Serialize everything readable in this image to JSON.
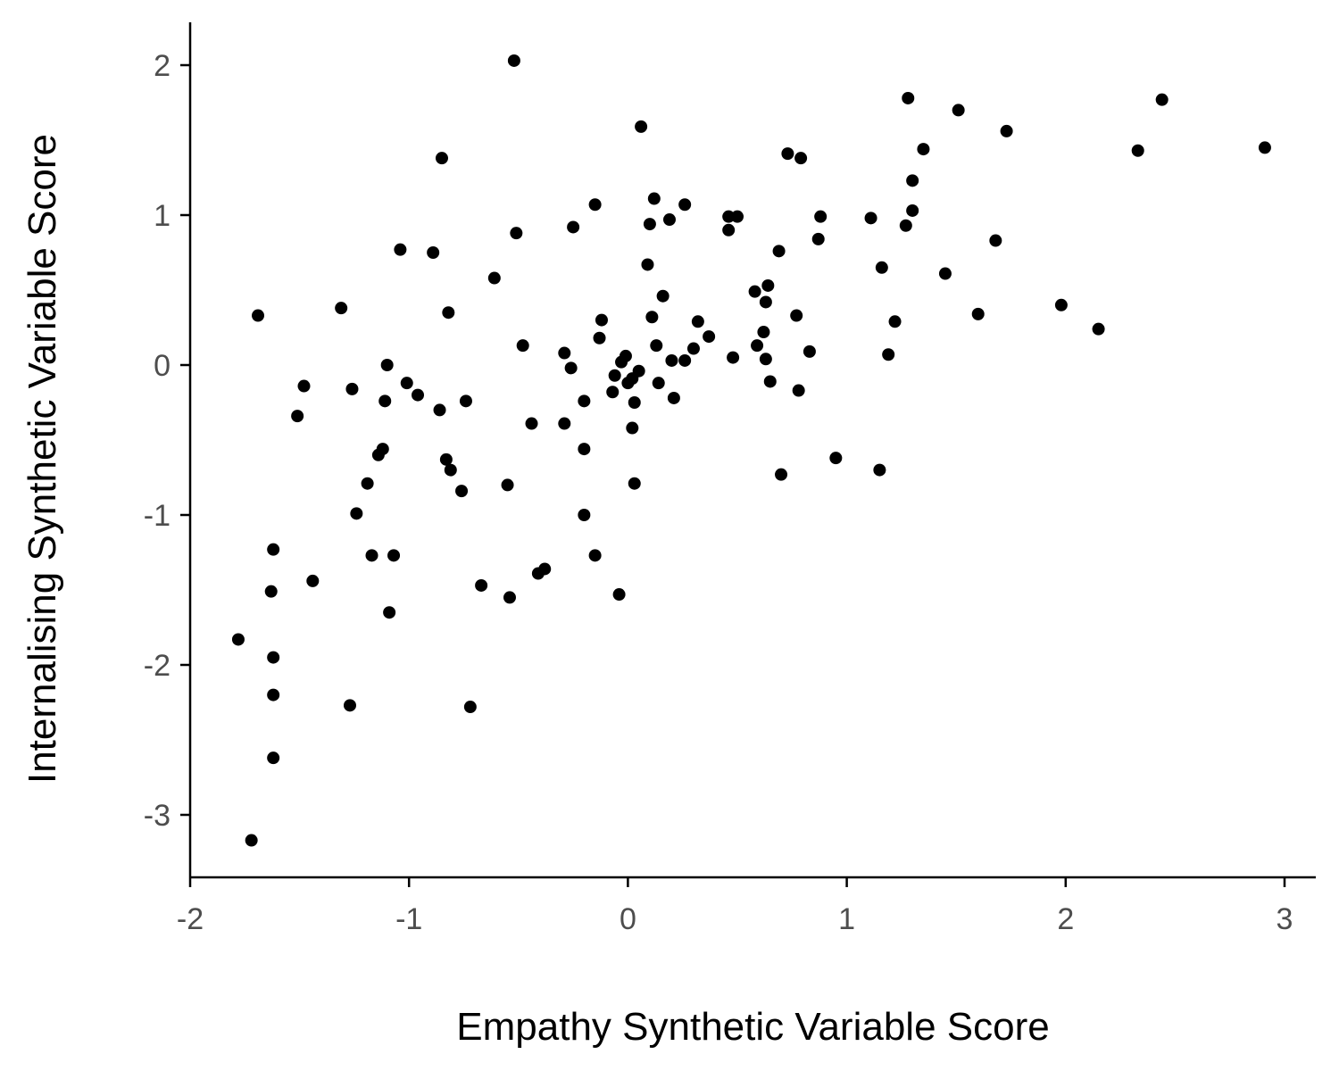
{
  "chart_data": {
    "type": "scatter",
    "title": "",
    "xlabel": "Empathy Synthetic Variable Score",
    "ylabel": "Internalising Synthetic Variable Score",
    "xlim": [
      -2.0,
      3.15
    ],
    "ylim": [
      -3.42,
      2.3
    ],
    "xticks": [
      -2,
      -1,
      0,
      1,
      2,
      3
    ],
    "yticks": [
      -3,
      -2,
      -1,
      0,
      1,
      2
    ],
    "xtick_labels": [
      "-2",
      "-1",
      "0",
      "1",
      "2",
      "3"
    ],
    "ytick_labels": [
      "-3",
      "-2",
      "-1",
      "0",
      "1",
      "2"
    ],
    "grid": false,
    "point_color": "#000000",
    "series": [
      {
        "points": [
          [
            -0.52,
            2.03
          ],
          [
            0.06,
            1.59
          ],
          [
            1.28,
            1.78
          ],
          [
            1.51,
            1.7
          ],
          [
            2.44,
            1.77
          ],
          [
            1.73,
            1.56
          ],
          [
            1.35,
            1.44
          ],
          [
            2.33,
            1.43
          ],
          [
            2.91,
            1.45
          ],
          [
            0.73,
            1.41
          ],
          [
            0.79,
            1.38
          ],
          [
            -0.85,
            1.38
          ],
          [
            1.3,
            1.23
          ],
          [
            0.12,
            1.11
          ],
          [
            -0.15,
            1.07
          ],
          [
            0.26,
            1.07
          ],
          [
            1.3,
            1.03
          ],
          [
            0.46,
            0.99
          ],
          [
            0.5,
            0.99
          ],
          [
            0.88,
            0.99
          ],
          [
            1.11,
            0.98
          ],
          [
            0.19,
            0.97
          ],
          [
            0.1,
            0.94
          ],
          [
            -0.25,
            0.92
          ],
          [
            1.27,
            0.93
          ],
          [
            0.46,
            0.9
          ],
          [
            -0.51,
            0.88
          ],
          [
            0.87,
            0.84
          ],
          [
            1.68,
            0.83
          ],
          [
            -1.04,
            0.77
          ],
          [
            -0.89,
            0.75
          ],
          [
            0.69,
            0.76
          ],
          [
            0.09,
            0.67
          ],
          [
            1.16,
            0.65
          ],
          [
            1.45,
            0.61
          ],
          [
            -0.61,
            0.58
          ],
          [
            0.64,
            0.53
          ],
          [
            0.58,
            0.49
          ],
          [
            0.16,
            0.46
          ],
          [
            0.63,
            0.42
          ],
          [
            1.98,
            0.4
          ],
          [
            -1.31,
            0.38
          ],
          [
            -0.82,
            0.35
          ],
          [
            -1.69,
            0.33
          ],
          [
            1.6,
            0.34
          ],
          [
            0.77,
            0.33
          ],
          [
            0.11,
            0.32
          ],
          [
            -0.12,
            0.3
          ],
          [
            0.32,
            0.29
          ],
          [
            1.22,
            0.29
          ],
          [
            2.15,
            0.24
          ],
          [
            0.62,
            0.22
          ],
          [
            0.37,
            0.19
          ],
          [
            -0.13,
            0.18
          ],
          [
            -0.48,
            0.13
          ],
          [
            0.13,
            0.13
          ],
          [
            0.59,
            0.13
          ],
          [
            0.3,
            0.11
          ],
          [
            0.83,
            0.09
          ],
          [
            -0.29,
            0.08
          ],
          [
            1.19,
            0.07
          ],
          [
            -0.01,
            0.06
          ],
          [
            0.48,
            0.05
          ],
          [
            0.63,
            0.04
          ],
          [
            0.2,
            0.03
          ],
          [
            0.26,
            0.03
          ],
          [
            -0.03,
            0.02
          ],
          [
            -1.1,
            0.0
          ],
          [
            -0.26,
            -0.02
          ],
          [
            0.05,
            -0.04
          ],
          [
            -0.06,
            -0.07
          ],
          [
            0.02,
            -0.09
          ],
          [
            0.65,
            -0.11
          ],
          [
            0.0,
            -0.12
          ],
          [
            0.14,
            -0.12
          ],
          [
            -1.01,
            -0.12
          ],
          [
            -1.48,
            -0.14
          ],
          [
            -1.26,
            -0.16
          ],
          [
            0.78,
            -0.17
          ],
          [
            -0.07,
            -0.18
          ],
          [
            -0.96,
            -0.2
          ],
          [
            0.21,
            -0.22
          ],
          [
            -1.11,
            -0.24
          ],
          [
            -0.74,
            -0.24
          ],
          [
            -0.2,
            -0.24
          ],
          [
            0.03,
            -0.25
          ],
          [
            -0.86,
            -0.3
          ],
          [
            -1.51,
            -0.34
          ],
          [
            -0.29,
            -0.39
          ],
          [
            -0.44,
            -0.39
          ],
          [
            0.02,
            -0.42
          ],
          [
            -0.2,
            -0.56
          ],
          [
            -1.12,
            -0.56
          ],
          [
            -1.14,
            -0.6
          ],
          [
            0.95,
            -0.62
          ],
          [
            -0.83,
            -0.63
          ],
          [
            -0.81,
            -0.7
          ],
          [
            1.15,
            -0.7
          ],
          [
            0.7,
            -0.73
          ],
          [
            0.03,
            -0.79
          ],
          [
            -1.19,
            -0.79
          ],
          [
            -0.55,
            -0.8
          ],
          [
            -0.76,
            -0.84
          ],
          [
            -1.24,
            -0.99
          ],
          [
            -0.2,
            -1.0
          ],
          [
            -1.62,
            -1.23
          ],
          [
            -1.17,
            -1.27
          ],
          [
            -1.07,
            -1.27
          ],
          [
            -0.15,
            -1.27
          ],
          [
            -0.38,
            -1.36
          ],
          [
            -0.41,
            -1.39
          ],
          [
            -1.44,
            -1.44
          ],
          [
            -0.67,
            -1.47
          ],
          [
            -1.63,
            -1.51
          ],
          [
            -0.04,
            -1.53
          ],
          [
            -0.54,
            -1.55
          ],
          [
            -1.09,
            -1.65
          ],
          [
            -1.78,
            -1.83
          ],
          [
            -1.62,
            -1.95
          ],
          [
            -1.62,
            -2.2
          ],
          [
            -1.27,
            -2.27
          ],
          [
            -0.72,
            -2.28
          ],
          [
            -1.62,
            -2.62
          ],
          [
            -1.72,
            -3.17
          ]
        ]
      }
    ]
  }
}
